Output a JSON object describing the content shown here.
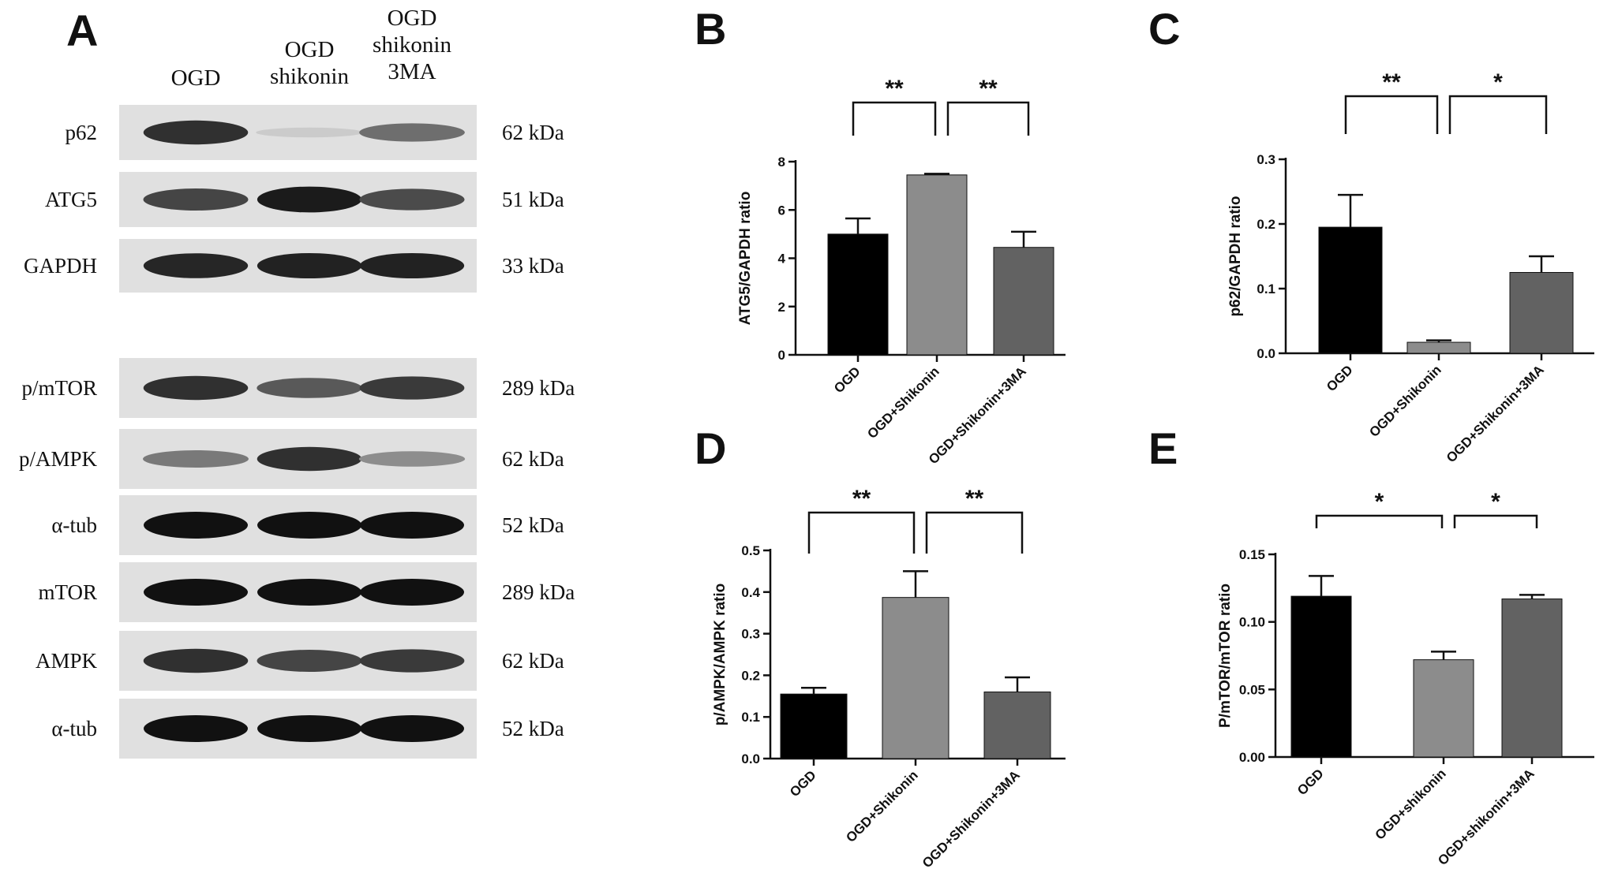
{
  "panel_a": {
    "letter": "A",
    "columns": [
      {
        "lines": [
          "OGD"
        ]
      },
      {
        "lines": [
          "OGD",
          "shikonin"
        ]
      },
      {
        "lines": [
          "OGD",
          "shikonin",
          "3MA"
        ]
      }
    ],
    "blots": [
      {
        "label": "p62",
        "kda": "62 kDa",
        "intensities": [
          0.85,
          0.1,
          0.55
        ]
      },
      {
        "label": "ATG5",
        "kda": "51 kDa",
        "intensities": [
          0.75,
          0.95,
          0.72
        ]
      },
      {
        "label": "GAPDH",
        "kda": "33 kDa",
        "intensities": [
          0.9,
          0.92,
          0.92
        ]
      },
      {
        "label": "p/mTOR",
        "kda": "289 kDa",
        "intensities": [
          0.85,
          0.65,
          0.8
        ]
      },
      {
        "label": "p/AMPK",
        "kda": "62 kDa",
        "intensities": [
          0.5,
          0.85,
          0.4
        ]
      },
      {
        "label": "α-tub",
        "kda": "52 kDa",
        "intensities": [
          1.0,
          1.0,
          1.0
        ]
      },
      {
        "label": "mTOR",
        "kda": "289 kDa",
        "intensities": [
          1.0,
          1.0,
          1.0
        ]
      },
      {
        "label": "AMPK",
        "kda": "62 kDa",
        "intensities": [
          0.85,
          0.75,
          0.8
        ]
      },
      {
        "label": "α-tub",
        "kda": "52 kDa",
        "intensities": [
          1.0,
          1.0,
          1.0
        ]
      }
    ]
  },
  "colors": {
    "bar1": "#000000",
    "bar2": "#8c8c8c",
    "bar3": "#626262",
    "band": "#111111"
  },
  "chart_data": [
    {
      "panel": "B",
      "type": "bar",
      "categories": [
        "OGD",
        "OGD+Shikonin",
        "OGD+Shikonin+3MA"
      ],
      "values": [
        5.0,
        7.45,
        4.45
      ],
      "errors": [
        0.65,
        0.05,
        0.65
      ],
      "ylabel": "ATG5/GAPDH ratio",
      "ylim": [
        0,
        8
      ],
      "yticks": [
        "0",
        "2",
        "4",
        "6",
        "8"
      ],
      "significance": [
        {
          "from": 0,
          "to": 1,
          "label": "**"
        },
        {
          "from": 1,
          "to": 2,
          "label": "**"
        }
      ]
    },
    {
      "panel": "C",
      "type": "bar",
      "categories": [
        "OGD",
        "OGD+Shikonin",
        "OGD+Shikonin+3MA"
      ],
      "values": [
        0.195,
        0.017,
        0.125
      ],
      "errors": [
        0.05,
        0.003,
        0.025
      ],
      "ylabel": "p62/GAPDH ratio",
      "ylim": [
        0,
        0.3
      ],
      "yticks": [
        "0.0",
        "0.1",
        "0.2",
        "0.3"
      ],
      "significance": [
        {
          "from": 0,
          "to": 1,
          "label": "**"
        },
        {
          "from": 1,
          "to": 2,
          "label": "*"
        }
      ]
    },
    {
      "panel": "D",
      "type": "bar",
      "categories": [
        "OGD",
        "OGD+Shikonin",
        "OGD+Shikonin+3MA"
      ],
      "values": [
        0.155,
        0.387,
        0.16
      ],
      "errors": [
        0.015,
        0.063,
        0.035
      ],
      "ylabel": "p/AMPK/AMPK ratio",
      "ylim": [
        0,
        0.5
      ],
      "yticks": [
        "0.0",
        "0.1",
        "0.2",
        "0.3",
        "0.4",
        "0.5"
      ],
      "significance": [
        {
          "from": 0,
          "to": 1,
          "label": "**"
        },
        {
          "from": 1,
          "to": 2,
          "label": "**"
        }
      ]
    },
    {
      "panel": "E",
      "type": "bar",
      "categories": [
        "OGD",
        "OGD+shikonin",
        "OGD+shikonin+3MA"
      ],
      "values": [
        0.119,
        0.072,
        0.117
      ],
      "errors": [
        0.015,
        0.006,
        0.003
      ],
      "ylabel": "P/mTOR/mTOR ratio",
      "ylim": [
        0,
        0.15
      ],
      "yticks": [
        "0.00",
        "0.05",
        "0.10",
        "0.15"
      ],
      "significance": [
        {
          "from": 0,
          "to": 1,
          "label": "*"
        },
        {
          "from": 1,
          "to": 2,
          "label": "*"
        }
      ]
    }
  ]
}
